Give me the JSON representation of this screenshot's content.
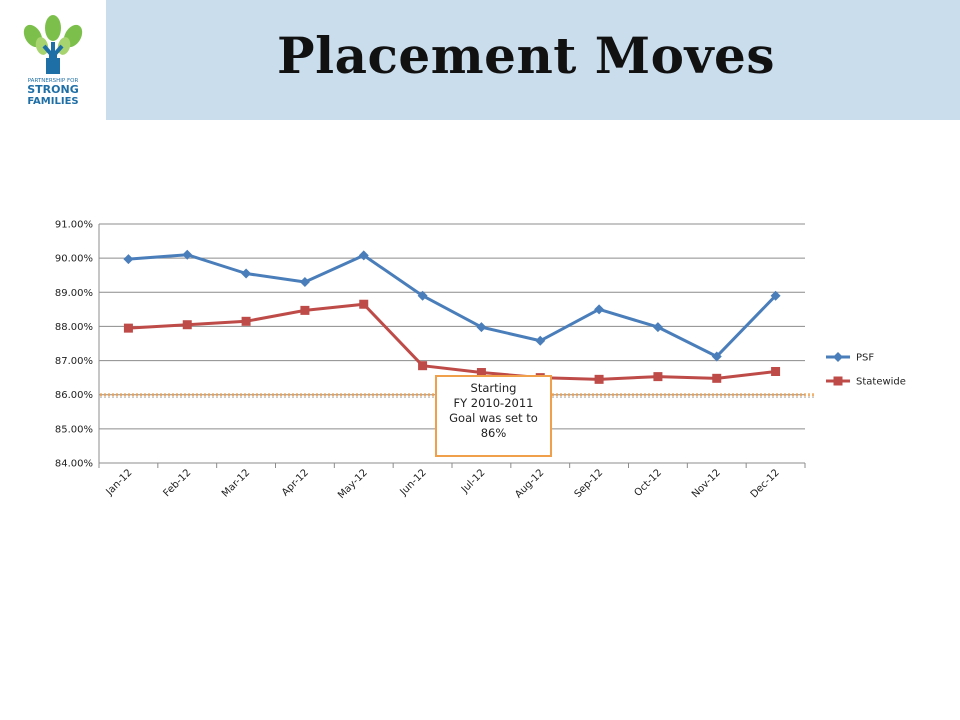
{
  "header": {
    "title": "Placement Moves",
    "logo": {
      "icon": "tree-icon",
      "line1": "PARTNERSHIP FOR",
      "line2": "STRONG",
      "line3": "FAMILIES"
    }
  },
  "callout": {
    "lines": [
      "Starting",
      "FY 2010-2011",
      "Goal was set to",
      "86%"
    ]
  },
  "colors": {
    "header_bg": "#c9dded",
    "psf": "#4a7ebb",
    "statewide": "#be4b48",
    "goal_line": "#f0a04b",
    "callout_border": "#f0a04b"
  },
  "chart_data": {
    "type": "line",
    "categories": [
      "Jan-12",
      "Feb-12",
      "Mar-12",
      "Apr-12",
      "May-12",
      "Jun-12",
      "Jul-12",
      "Aug-12",
      "Sep-12",
      "Oct-12",
      "Nov-12",
      "Dec-12"
    ],
    "series": [
      {
        "name": "PSF",
        "marker": "diamond",
        "color": "#4a7ebb",
        "values": [
          89.97,
          90.1,
          89.55,
          89.3,
          90.08,
          88.9,
          87.98,
          87.58,
          88.5,
          87.98,
          87.12,
          88.9
        ]
      },
      {
        "name": "Statewide",
        "marker": "square",
        "color": "#be4b48",
        "values": [
          87.95,
          88.05,
          88.15,
          88.47,
          88.65,
          86.85,
          86.65,
          86.5,
          86.45,
          86.53,
          86.48,
          86.68
        ]
      }
    ],
    "goal": 86.0,
    "ylim": [
      84,
      91
    ],
    "yticks": [
      "84.00%",
      "85.00%",
      "86.00%",
      "87.00%",
      "88.00%",
      "89.00%",
      "90.00%",
      "91.00%"
    ],
    "grid": true,
    "legend": "right"
  }
}
